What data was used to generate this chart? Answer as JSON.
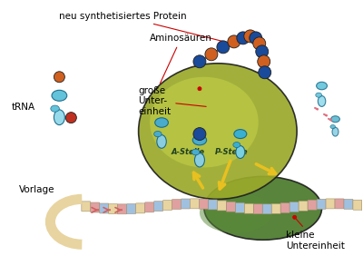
{
  "background_color": "#ffffff",
  "labels": {
    "neu_synthetisiertes_protein": "neu synthetisiertes Protein",
    "aminosaeuren": "Aminosäuren",
    "grosse_untereinheit": "große\nUnter-\neinheit",
    "kleine_untereinheit": "kleine\nUntereinheit",
    "trna": "tRNA",
    "vorlage": "Vorlage",
    "a_stelle": "A-Stelle",
    "p_stelle": "P-Stelle"
  },
  "colors": {
    "ribosome_large": "#9aaa2a",
    "ribosome_small": "#4a7a2a",
    "ribosome_large_light": "#c8d44a",
    "trna_blue_dark": "#1a6a8a",
    "trna_blue_mid": "#4aaccc",
    "trna_blue_light": "#8acce0",
    "trna_blue_pale": "#aadde8",
    "amino_blue": "#1a4a9a",
    "amino_orange": "#d06020",
    "amino_red": "#c03020",
    "mrna_beige": "#e8d4a0",
    "mrna_pink": "#e0a0a0",
    "mrna_blue_light": "#a0c0e0",
    "arrow_yellow": "#e8c020",
    "arrow_red_small": "#d06060",
    "text_color": "#000000",
    "label_line": "#cc0000",
    "outline": "#202020",
    "white": "#ffffff"
  },
  "figsize": [
    4.0,
    2.82
  ],
  "dpi": 100
}
